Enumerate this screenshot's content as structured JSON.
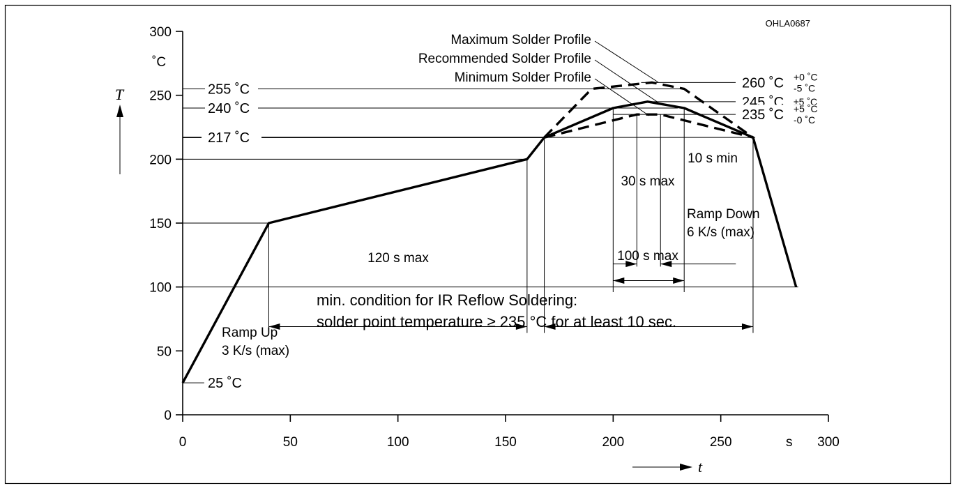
{
  "figure_id": "OHLA0687",
  "chart_data": {
    "type": "line",
    "title": "",
    "xlabel": "t",
    "ylabel": "T",
    "x_unit": "s",
    "y_unit": "˚C",
    "xlim": [
      0,
      300
    ],
    "ylim": [
      0,
      300
    ],
    "xticks": [
      "0",
      "50",
      "100",
      "150",
      "200",
      "250",
      "300"
    ],
    "yticks": [
      "0",
      "50",
      "100",
      "150",
      "200",
      "250",
      "300"
    ],
    "grid": false,
    "series": [
      {
        "name": "Recommended Solder Profile",
        "style": "solid",
        "points": [
          [
            0,
            25
          ],
          [
            40,
            150
          ],
          [
            160,
            200
          ],
          [
            168,
            217
          ],
          [
            200,
            240
          ],
          [
            216,
            245
          ],
          [
            233,
            240
          ],
          [
            265,
            217
          ],
          [
            285,
            100
          ]
        ]
      },
      {
        "name": "Maximum Solder Profile",
        "style": "dashed",
        "points": [
          [
            168,
            217
          ],
          [
            190,
            255
          ],
          [
            218,
            260
          ],
          [
            233,
            255
          ],
          [
            265,
            217
          ]
        ]
      },
      {
        "name": "Minimum Solder Profile",
        "style": "dashed",
        "points": [
          [
            168,
            217
          ],
          [
            211,
            235
          ],
          [
            222,
            235
          ],
          [
            265,
            217
          ]
        ]
      }
    ],
    "left_labels": [
      {
        "text": "255 ˚C",
        "value": 255
      },
      {
        "text": "240 ˚C",
        "value": 240
      },
      {
        "text": "217 ˚C",
        "value": 217
      },
      {
        "text": "25 ˚C",
        "value": 25
      }
    ],
    "right_labels": [
      {
        "main": "260 ˚C",
        "sup": "+0 ˚C",
        "sub": "-5 ˚C",
        "value": 260
      },
      {
        "main": "245 ˚C",
        "sup": "±5 ˚C",
        "sub": "",
        "value": 245
      },
      {
        "main": "235 ˚C",
        "sup": "+5 ˚C",
        "sub": "-0 ˚C",
        "value": 235
      }
    ],
    "annotations": {
      "ramp_up": [
        "Ramp Up",
        "3 K/s (max)"
      ],
      "ramp_down": [
        "Ramp Down",
        "6 K/s (max)"
      ],
      "dur_120": "120 s max",
      "dur_100": "100 s max",
      "dur_30": "30 s max",
      "dur_10": "10 s min",
      "note": [
        "min. condition for IR Reflow Soldering:",
        "solder point temperature ≥ 235 °C for at least 10 sec."
      ]
    }
  }
}
